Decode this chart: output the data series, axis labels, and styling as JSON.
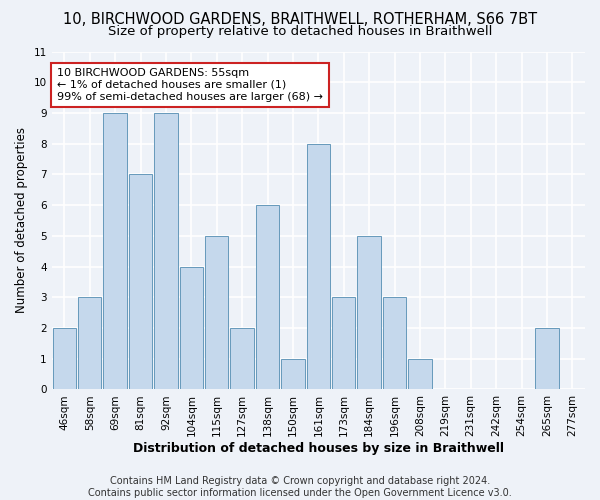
{
  "title_line1": "10, BIRCHWOOD GARDENS, BRAITHWELL, ROTHERHAM, S66 7BT",
  "title_line2": "Size of property relative to detached houses in Braithwell",
  "xlabel": "Distribution of detached houses by size in Braithwell",
  "ylabel": "Number of detached properties",
  "categories": [
    "46sqm",
    "58sqm",
    "69sqm",
    "81sqm",
    "92sqm",
    "104sqm",
    "115sqm",
    "127sqm",
    "138sqm",
    "150sqm",
    "161sqm",
    "173sqm",
    "184sqm",
    "196sqm",
    "208sqm",
    "219sqm",
    "231sqm",
    "242sqm",
    "254sqm",
    "265sqm",
    "277sqm"
  ],
  "values": [
    2,
    3,
    9,
    7,
    9,
    4,
    5,
    2,
    6,
    1,
    8,
    3,
    5,
    3,
    1,
    0,
    0,
    0,
    0,
    2,
    0
  ],
  "bar_color": "#c5d8ec",
  "bar_edgecolor": "#6699bb",
  "annotation_text": "10 BIRCHWOOD GARDENS: 55sqm\n← 1% of detached houses are smaller (1)\n99% of semi-detached houses are larger (68) →",
  "annotation_box_facecolor": "#ffffff",
  "annotation_box_edgecolor": "#cc2222",
  "ylim": [
    0,
    11
  ],
  "yticks": [
    0,
    1,
    2,
    3,
    4,
    5,
    6,
    7,
    8,
    9,
    10,
    11
  ],
  "footer_line1": "Contains HM Land Registry data © Crown copyright and database right 2024.",
  "footer_line2": "Contains public sector information licensed under the Open Government Licence v3.0.",
  "background_color": "#eef2f8",
  "grid_color": "#ffffff",
  "title_fontsize": 10.5,
  "subtitle_fontsize": 9.5,
  "ylabel_fontsize": 8.5,
  "xlabel_fontsize": 9,
  "tick_fontsize": 7.5,
  "annotation_fontsize": 8,
  "footer_fontsize": 7
}
